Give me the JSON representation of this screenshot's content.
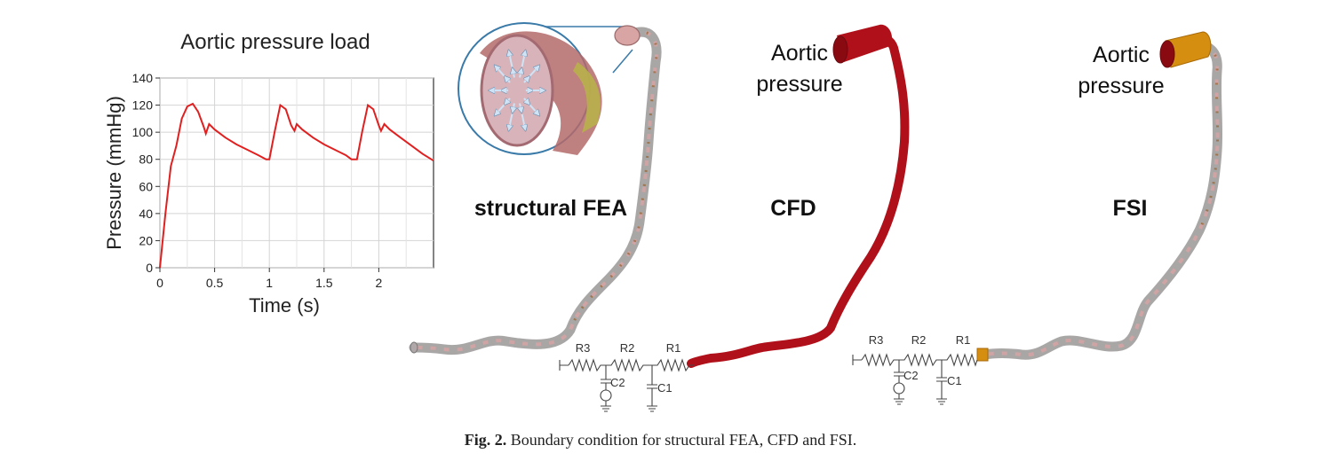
{
  "chart": {
    "title": "Aortic pressure load",
    "xlabel": "Time (s)",
    "ylabel": "Pressure (mmHg)"
  },
  "chart_data": {
    "type": "line",
    "title": "Aortic pressure load",
    "xlabel": "Time (s)",
    "ylabel": "Pressure (mmHg)",
    "xlim": [
      0,
      2.5
    ],
    "ylim": [
      0,
      140
    ],
    "x_ticks": [
      0,
      0.5,
      1,
      1.5,
      2
    ],
    "x_tick_labels": [
      "0",
      "0.5",
      "1",
      "1.5",
      "2"
    ],
    "y_ticks": [
      0,
      20,
      40,
      60,
      80,
      100,
      120,
      140
    ],
    "y_tick_labels": [
      "0",
      "20",
      "40",
      "60",
      "80",
      "100",
      "120",
      "140"
    ],
    "grid": true,
    "line_color": "#e02020",
    "x": [
      0,
      0.05,
      0.1,
      0.15,
      0.2,
      0.25,
      0.3,
      0.35,
      0.4,
      0.42,
      0.45,
      0.5,
      0.6,
      0.7,
      0.8,
      0.9,
      0.97,
      1.0,
      1.05,
      1.1,
      1.15,
      1.2,
      1.23,
      1.25,
      1.3,
      1.4,
      1.5,
      1.6,
      1.7,
      1.75,
      1.8,
      1.85,
      1.9,
      1.95,
      2.0,
      2.02,
      2.05,
      2.1,
      2.2,
      2.3,
      2.4,
      2.5
    ],
    "y": [
      0,
      40,
      75,
      90,
      110,
      119,
      121,
      115,
      104,
      99,
      106,
      102,
      96,
      91,
      87,
      83,
      80,
      80,
      101,
      120,
      117,
      105,
      101,
      106,
      102,
      96,
      91,
      87,
      83,
      80,
      80,
      101,
      120,
      117,
      105,
      101,
      106,
      102,
      96,
      90,
      84,
      79
    ]
  },
  "labels": {
    "structural_fea": "structural FEA",
    "cfd": "CFD",
    "fsi": "FSI",
    "cfd_inlet_line1": "Aortic",
    "cfd_inlet_line2": "pressure",
    "fsi_inlet_line1": "Aortic",
    "fsi_inlet_line2": "pressure"
  },
  "circuit_cfd": {
    "r3": "R3",
    "r2": "R2",
    "r1": "R1",
    "c2": "C2",
    "c1": "C1"
  },
  "circuit_fsi": {
    "r3": "R3",
    "r2": "R2",
    "r1": "R1",
    "c2": "C2",
    "c1": "C1"
  },
  "caption": {
    "label": "Fig. 2.",
    "text": "Boundary condition for structural FEA, CFD and FSI."
  },
  "colors": {
    "vessel_gray": "#a9a6a6",
    "vessel_pink": "#d8a4a4",
    "cfd_red": "#b0101a",
    "inlet_orange": "#d68e10",
    "inset_border": "#3a7aa8",
    "arrow_fill": "#cfe3f5",
    "plaque": "#b8b04a"
  }
}
